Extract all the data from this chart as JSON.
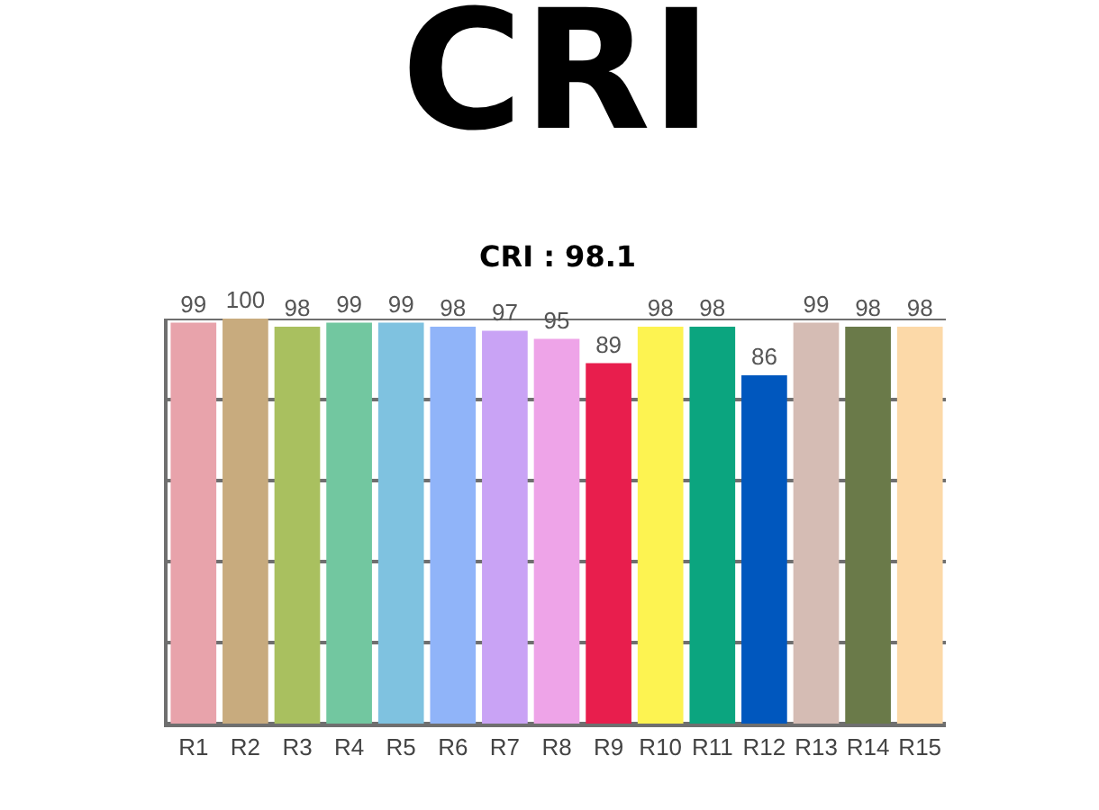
{
  "chart_data": {
    "type": "bar",
    "title": "CRI",
    "subtitle": "CRI : 98.1",
    "categories": [
      "R1",
      "R2",
      "R3",
      "R4",
      "R5",
      "R6",
      "R7",
      "R8",
      "R9",
      "R10",
      "R11",
      "R12",
      "R13",
      "R14",
      "R15"
    ],
    "values": [
      99,
      100,
      98,
      99,
      99,
      98,
      97,
      95,
      89,
      98,
      98,
      86,
      99,
      98,
      98
    ],
    "colors": [
      "#e8a3ab",
      "#c8ab7e",
      "#a9c05f",
      "#72c7a0",
      "#7fc2e0",
      "#90b4f9",
      "#c9a3f5",
      "#eea4e8",
      "#e81e4d",
      "#fdf351",
      "#0ba57f",
      "#0057be",
      "#d5bcb4",
      "#6a7a49",
      "#fcd9a8"
    ],
    "ylim": [
      0,
      100
    ],
    "yticks": [
      {
        "value": 0,
        "label": null
      },
      {
        "value": 20,
        "label": null
      },
      {
        "value": 40,
        "label": null
      },
      {
        "value": 60,
        "label": null
      },
      {
        "value": 80,
        "label": null
      },
      {
        "value": 100,
        "label": null
      }
    ],
    "grid": "y",
    "tick_labels": "x",
    "data_labels": true
  }
}
